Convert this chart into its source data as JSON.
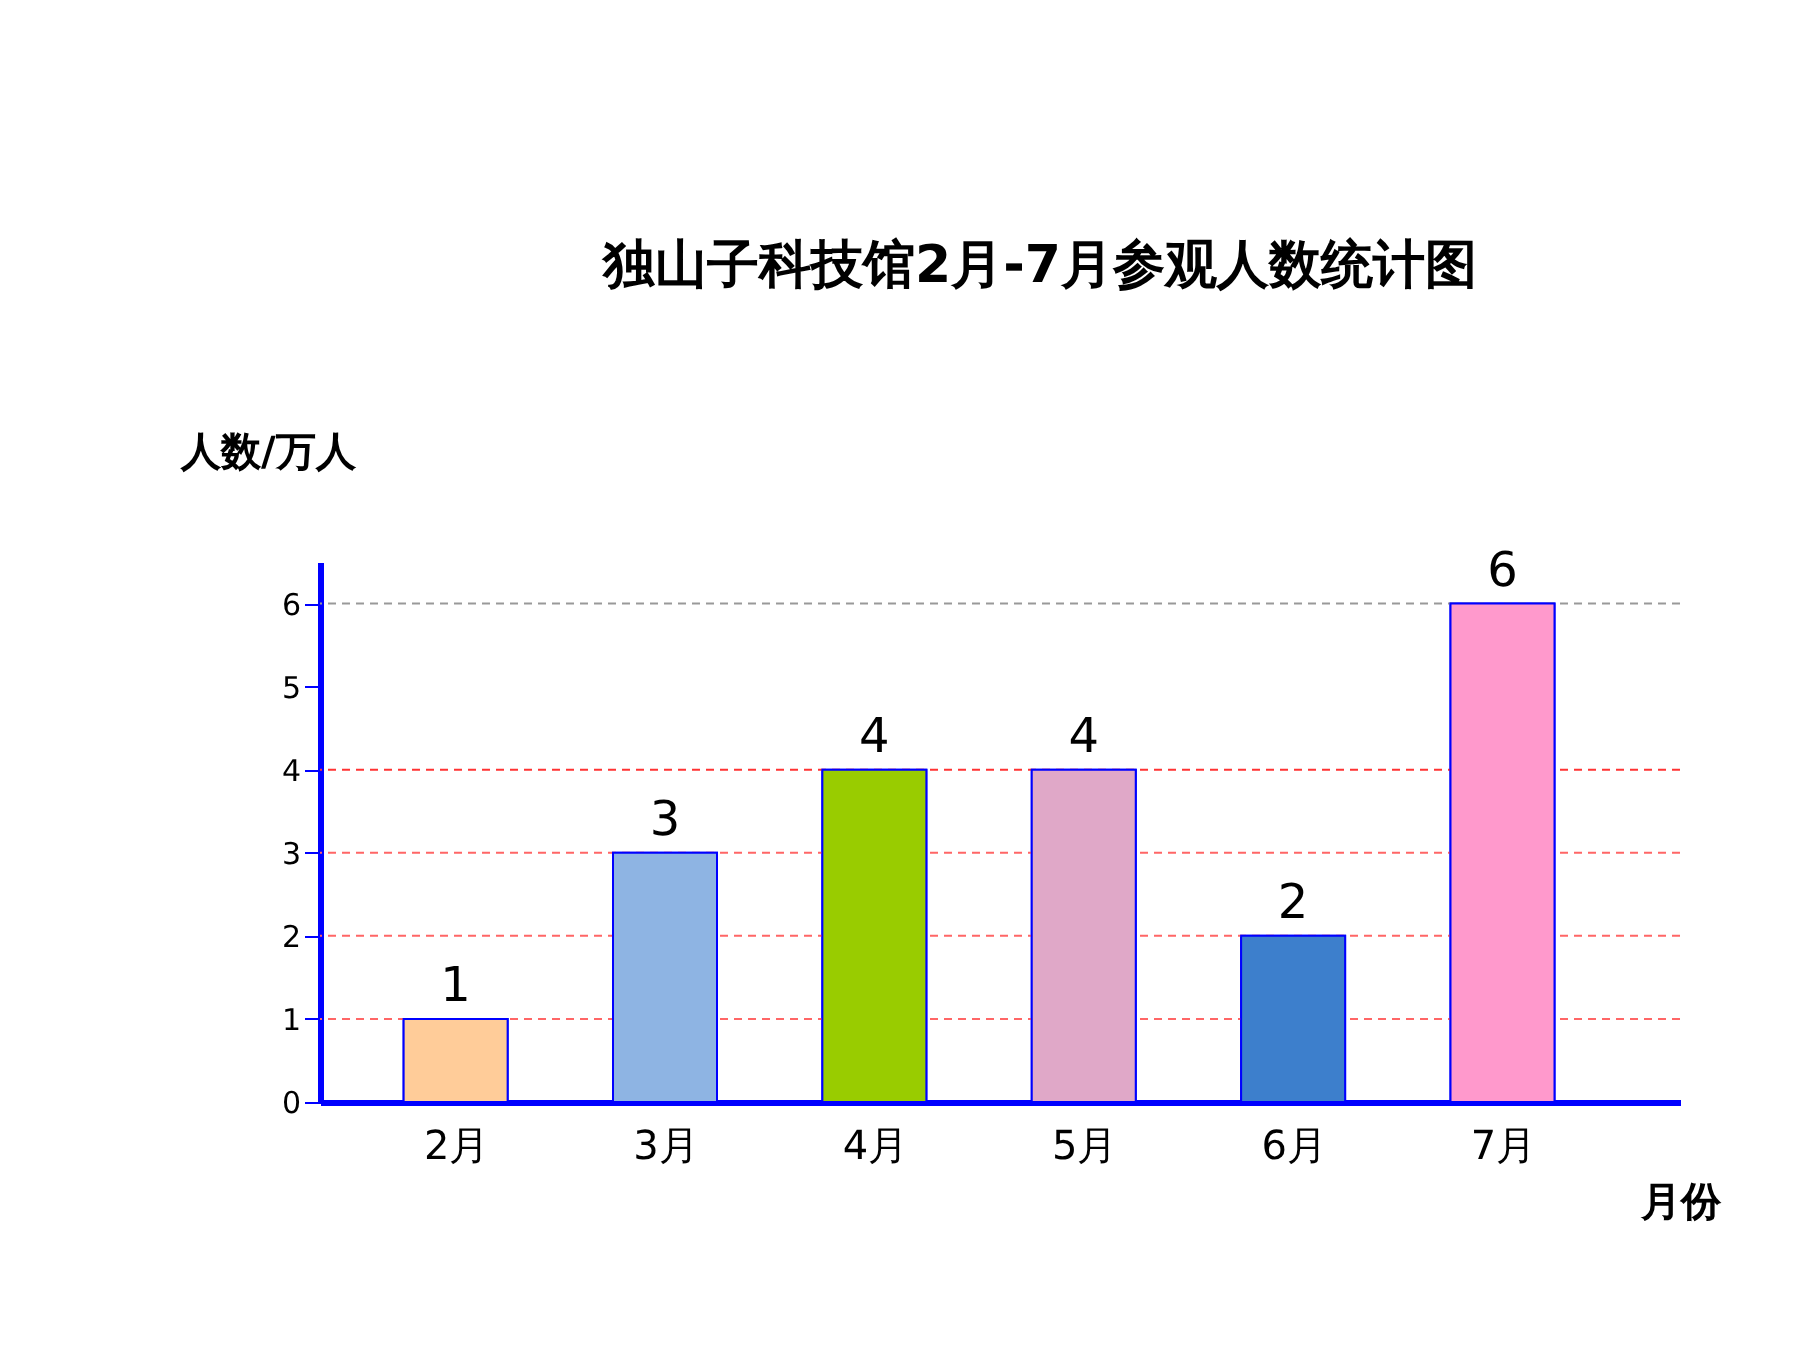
{
  "chart_data": {
    "type": "bar",
    "title": "独山子科技馆2月-7月参观人数统计图",
    "xlabel": "月份",
    "ylabel": "人数/万人",
    "categories": [
      "2月",
      "3月",
      "4月",
      "5月",
      "6月",
      "7月"
    ],
    "values": [
      1,
      3,
      4,
      4,
      2,
      6
    ],
    "colors": [
      "#ffcc99",
      "#8eb4e3",
      "#99cc00",
      "#e0a8c8",
      "#3d7fcc",
      "#ff99cc"
    ],
    "ylim": [
      0,
      6.5
    ],
    "yticks": [
      0,
      1,
      2,
      3,
      4,
      5,
      6
    ],
    "ref_lines": [
      {
        "axis": "y",
        "value": 1,
        "color": "#ff6666",
        "line_style": "dashed"
      },
      {
        "axis": "y",
        "value": 2,
        "color": "#ff6666",
        "line_style": "dashed"
      },
      {
        "axis": "y",
        "value": 3,
        "color": "#ff6666",
        "line_style": "dashed"
      },
      {
        "axis": "y",
        "value": 4,
        "color": "#ff3333",
        "line_style": "dashed"
      },
      {
        "axis": "y",
        "value": 6,
        "color": "#999999",
        "line_style": "dashed"
      }
    ],
    "data_labels": true,
    "grid": false
  }
}
